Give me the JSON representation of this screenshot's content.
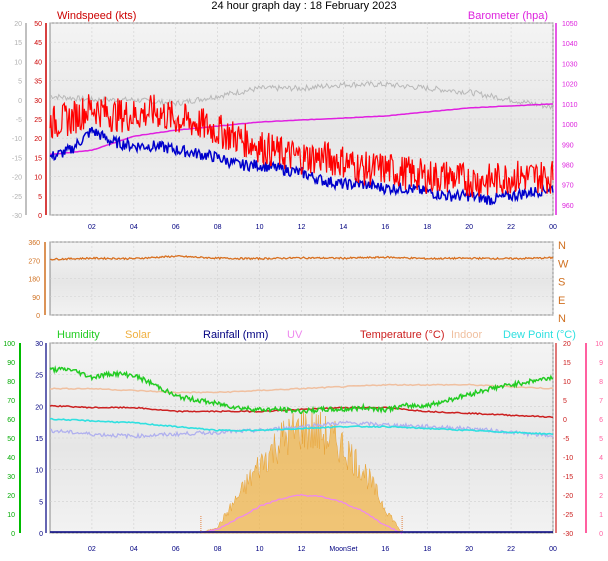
{
  "title": "24 hour graph day : 18 February 2023",
  "colors": {
    "wind_gust": "#ff0000",
    "wind_avg": "#0000cc",
    "barometer": "#e020e0",
    "temp_offset_grey": "#b8b8b8",
    "direction": "#d87020",
    "humidity": "#22cc22",
    "solar": "#f0b040",
    "rainfall": "#000080",
    "uv": "#ee88ee",
    "temperature": "#cc2020",
    "indoor": "#f0c0a0",
    "dew_point": "#30e0e0",
    "lavender": "#b0b0ee",
    "left_axis_wind": "#c0c0c0",
    "left_axis_humidity": "#00bb00",
    "right_axis_temp": "#ff60a0"
  },
  "chart_data": [
    {
      "type": "line",
      "panel": "wind-barometer",
      "x_ticks": [
        "02",
        "04",
        "06",
        "08",
        "10",
        "12",
        "14",
        "16",
        "18",
        "20",
        "22",
        "00"
      ],
      "left_axis": {
        "label": "Windspeed (kts)",
        "ticks": [
          50,
          45,
          40,
          35,
          30,
          25,
          20,
          15,
          10,
          5,
          0
        ],
        "ylim": [
          0,
          50
        ]
      },
      "left_axis_inner": {
        "ticks": [
          "20",
          "15",
          "10",
          "5",
          "0",
          "-5",
          "-10",
          "-15",
          "-20",
          "-25",
          "-30"
        ]
      },
      "right_axis": {
        "label": "Barometer (hpa)",
        "ticks": [
          1050,
          1040,
          1030,
          1020,
          1010,
          1000,
          990,
          980,
          970,
          960
        ],
        "ylim": [
          955,
          1050
        ]
      },
      "series": [
        {
          "name": "Windspeed (kts)",
          "role": "gust",
          "x": [
            0,
            1,
            2,
            3,
            4,
            5,
            6,
            7,
            8,
            9,
            10,
            11,
            12,
            13,
            14,
            15,
            16,
            17,
            18,
            19,
            20,
            21,
            22,
            23,
            24
          ],
          "values": [
            24,
            25,
            28,
            26,
            26,
            27,
            25,
            24,
            22,
            20,
            18,
            16,
            15,
            15,
            14,
            12,
            12,
            11,
            10,
            10,
            9,
            9,
            10,
            10,
            10
          ]
        },
        {
          "name": "average",
          "x": [
            0,
            1,
            2,
            3,
            4,
            5,
            6,
            7,
            8,
            9,
            10,
            11,
            12,
            13,
            14,
            15,
            16,
            17,
            18,
            19,
            20,
            21,
            22,
            23,
            24
          ],
          "values": [
            15,
            17,
            22,
            19,
            18,
            18,
            17,
            16,
            15,
            13,
            13,
            12,
            11,
            9,
            8,
            8,
            7,
            7,
            6,
            5,
            5,
            4,
            5,
            6,
            7
          ]
        },
        {
          "name": "Barometer (hpa)",
          "x": [
            0,
            2,
            4,
            6,
            8,
            10,
            12,
            14,
            16,
            18,
            20,
            22,
            24
          ],
          "values": [
            985,
            987,
            994,
            997,
            999,
            1001,
            1002,
            1003,
            1004,
            1006,
            1008,
            1009,
            1010
          ]
        },
        {
          "name": "grey",
          "x": [
            0,
            2,
            4,
            6,
            8,
            10,
            12,
            14,
            16,
            18,
            20,
            22,
            24
          ],
          "values": [
            31,
            30,
            30,
            29,
            31,
            33,
            33,
            34,
            34,
            33,
            32,
            30,
            28
          ]
        }
      ]
    },
    {
      "type": "line",
      "panel": "wind-direction",
      "x_ticks": [],
      "left_axis": {
        "ticks": [
          360,
          270,
          180,
          90,
          0
        ],
        "ylim": [
          0,
          360
        ]
      },
      "right_axis": {
        "labels": [
          "N",
          "W",
          "S",
          "E",
          "N"
        ]
      },
      "series": [
        {
          "name": "direction",
          "x": [
            0,
            2,
            4,
            6,
            8,
            10,
            12,
            14,
            16,
            18,
            20,
            22,
            24
          ],
          "values": [
            275,
            280,
            278,
            290,
            280,
            278,
            282,
            280,
            285,
            278,
            280,
            278,
            282
          ]
        }
      ]
    },
    {
      "type": "area",
      "panel": "humidity-temperature",
      "x_ticks": [
        "02",
        "04",
        "06",
        "08",
        "10",
        "12",
        "MoonSet",
        "16",
        "18",
        "20",
        "22",
        "00"
      ],
      "legend": [
        "Humidity",
        "Solar",
        "Rainfall (mm)",
        "UV",
        "Temperature (°C)",
        "Indoor",
        "Dew Point (°C)"
      ],
      "left_axis_humidity": {
        "ticks": [
          100,
          90,
          80,
          70,
          60,
          50,
          40,
          30,
          20,
          10,
          0
        ],
        "ylim": [
          0,
          100
        ]
      },
      "left_axis_rain": {
        "ticks": [
          30,
          25,
          20,
          15,
          10,
          5,
          0
        ],
        "ylim": [
          0,
          30
        ]
      },
      "right_axis_temp": {
        "ticks": [
          20,
          15,
          10,
          5,
          0,
          -5,
          -10,
          -15,
          -20,
          -25,
          -30
        ],
        "ylim": [
          -30,
          20
        ]
      },
      "right_axis_uv": {
        "ticks": [
          10,
          9,
          8,
          7,
          6,
          5,
          4,
          3,
          2,
          1,
          0
        ],
        "ylim": [
          0,
          10
        ]
      },
      "series": [
        {
          "name": "Humidity",
          "x": [
            0,
            1,
            2,
            3,
            4,
            5,
            6,
            7,
            8,
            9,
            10,
            11,
            12,
            13,
            14,
            15,
            16,
            17,
            18,
            19,
            20,
            21,
            22,
            23,
            24
          ],
          "values": [
            86,
            86,
            82,
            84,
            83,
            78,
            72,
            70,
            68,
            66,
            65,
            65,
            64,
            65,
            65,
            66,
            65,
            67,
            67,
            70,
            73,
            76,
            78,
            80,
            82
          ]
        },
        {
          "name": "Temperature (°C)",
          "x": [
            0,
            2,
            4,
            6,
            8,
            10,
            12,
            14,
            16,
            18,
            20,
            22,
            24
          ],
          "values": [
            3.5,
            3,
            3,
            2,
            2,
            2,
            2.5,
            3,
            3,
            2,
            1.5,
            1,
            0.5
          ]
        },
        {
          "name": "Indoor",
          "x": [
            0,
            2,
            4,
            6,
            8,
            10,
            12,
            14,
            16,
            18,
            20,
            22,
            24
          ],
          "values": [
            8,
            8,
            7.5,
            7,
            7,
            7.5,
            8,
            8.5,
            9,
            9,
            9,
            8.5,
            8
          ]
        },
        {
          "name": "Dew Point (°C)",
          "x": [
            0,
            2,
            4,
            6,
            8,
            10,
            12,
            14,
            16,
            18,
            20,
            22,
            24
          ],
          "values": [
            0,
            -0.5,
            -1,
            -2,
            -3,
            -3,
            -2.5,
            -2,
            -2,
            -2.5,
            -3,
            -3.5,
            -4
          ]
        },
        {
          "name": "lavender",
          "x": [
            0,
            2,
            4,
            6,
            8,
            10,
            12,
            14,
            16,
            18,
            20,
            22,
            24
          ],
          "values": [
            -3,
            -4,
            -4.5,
            -4,
            -3.5,
            -3,
            -2,
            -1,
            -1.5,
            -2,
            -2.5,
            -3.5,
            -4.5
          ]
        },
        {
          "name": "Solar",
          "x": [
            7.2,
            8,
            9,
            10,
            11,
            12,
            13,
            14,
            15,
            16,
            16.8
          ],
          "values": [
            0,
            1,
            6,
            11,
            15,
            17,
            16,
            14,
            10,
            4,
            0
          ]
        },
        {
          "name": "UV",
          "x": [
            7.2,
            8,
            9,
            10,
            11,
            12,
            13,
            14,
            15,
            16,
            16.8
          ],
          "values": [
            0,
            0.2,
            0.8,
            1.4,
            1.8,
            2.0,
            1.9,
            1.6,
            1.1,
            0.4,
            0
          ]
        },
        {
          "name": "Rainfall (mm)",
          "x": [
            0,
            24
          ],
          "values": [
            0,
            0
          ]
        }
      ]
    }
  ]
}
